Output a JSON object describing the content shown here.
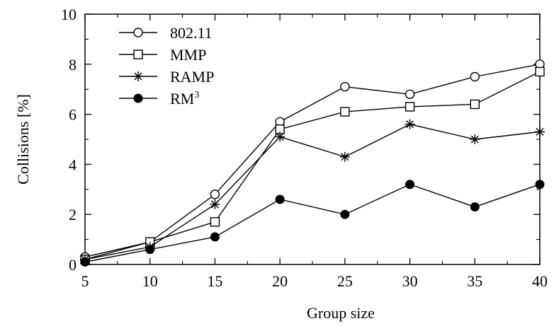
{
  "chart_data": {
    "type": "line",
    "title": "",
    "xlabel": "Group size",
    "ylabel": "Collisions [%]",
    "x": [
      5,
      10,
      15,
      20,
      25,
      30,
      35,
      40
    ],
    "xticks": [
      "5",
      "10",
      "15",
      "20",
      "25",
      "30",
      "35",
      "40"
    ],
    "yticks": [
      "0",
      "2",
      "4",
      "6",
      "8",
      "10"
    ],
    "xlim": [
      5,
      40
    ],
    "ylim": [
      0,
      10
    ],
    "grid": false,
    "legend_position": "top-left",
    "series": [
      {
        "name": "802.11",
        "marker": "open-circle",
        "values": [
          0.3,
          0.9,
          2.8,
          5.7,
          7.1,
          6.8,
          7.5,
          8.0
        ]
      },
      {
        "name": "MMP",
        "marker": "open-square",
        "values": [
          0.2,
          0.9,
          1.7,
          5.4,
          6.1,
          6.3,
          6.4,
          7.7
        ]
      },
      {
        "name": "RAMP",
        "marker": "asterisk",
        "values": [
          0.2,
          0.7,
          2.4,
          5.1,
          4.3,
          5.6,
          5.0,
          5.3
        ]
      },
      {
        "name": "RM",
        "name_superscript": "3",
        "marker": "filled-circle",
        "values": [
          0.1,
          0.6,
          1.1,
          2.6,
          2.0,
          3.2,
          2.3,
          3.2
        ]
      }
    ]
  }
}
